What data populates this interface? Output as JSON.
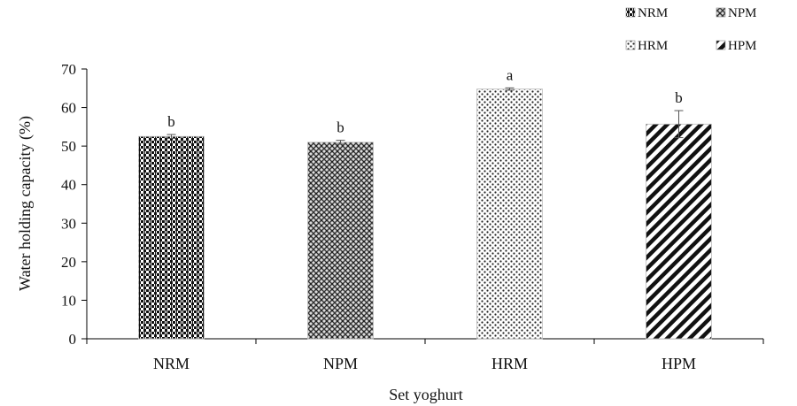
{
  "chart_data": {
    "type": "bar",
    "categories": [
      "NRM",
      "NPM",
      "HRM",
      "HPM"
    ],
    "values": [
      52.5,
      51.0,
      64.8,
      55.7
    ],
    "error_bars": [
      0.5,
      0.5,
      0.3,
      3.5
    ],
    "significance_letters": [
      "b",
      "b",
      "a",
      "b"
    ],
    "xlabel": "Set yoghurt",
    "ylabel": "Water holding capacity (%)",
    "ylim": [
      0,
      70
    ],
    "yticks": [
      0,
      10,
      20,
      30,
      40,
      50,
      60,
      70
    ],
    "grid": false,
    "legend": {
      "placement": "top-right",
      "entries": [
        "NRM",
        "NPM",
        "HRM",
        "HPM"
      ]
    }
  }
}
